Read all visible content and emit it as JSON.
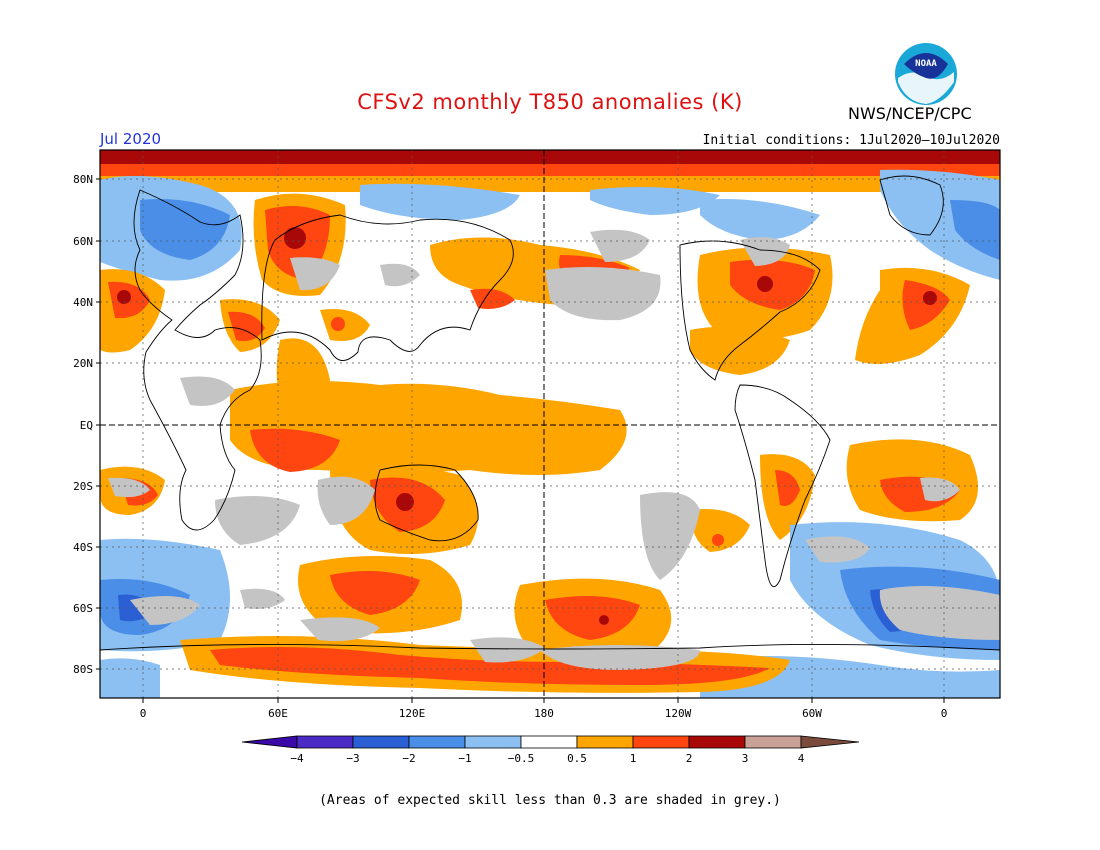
{
  "header": {
    "title": "CFSv2 monthly T850 anomalies (K)",
    "agency": "NWS/NCEP/CPC",
    "month": "Jul 2020",
    "initial_conditions": "Initial conditions: 1Jul2020–10Jul2020"
  },
  "logo": {
    "text": "NOAA"
  },
  "map": {
    "lat_labels": [
      "80N",
      "60N",
      "40N",
      "20N",
      "EQ",
      "20S",
      "40S",
      "60S",
      "80S"
    ],
    "lon_labels": [
      "0",
      "60E",
      "120E",
      "180",
      "120W",
      "60W",
      "0"
    ]
  },
  "legend": {
    "ticks": [
      "−4",
      "−3",
      "−2",
      "−1",
      "−0.5",
      "0.5",
      "1",
      "2",
      "3",
      "4"
    ],
    "colors": [
      "#4a2bc4",
      "#2b5fd4",
      "#4a8ee8",
      "#8cc0f2",
      "#ffffff",
      "#ffa500",
      "#ff4510",
      "#a80808",
      "#c9a196"
    ],
    "low_color": "#3a0aa8",
    "high_color": "#7a4a3a"
  },
  "footnote": "(Areas of expected skill less than 0.3 are shaded in grey.)"
}
